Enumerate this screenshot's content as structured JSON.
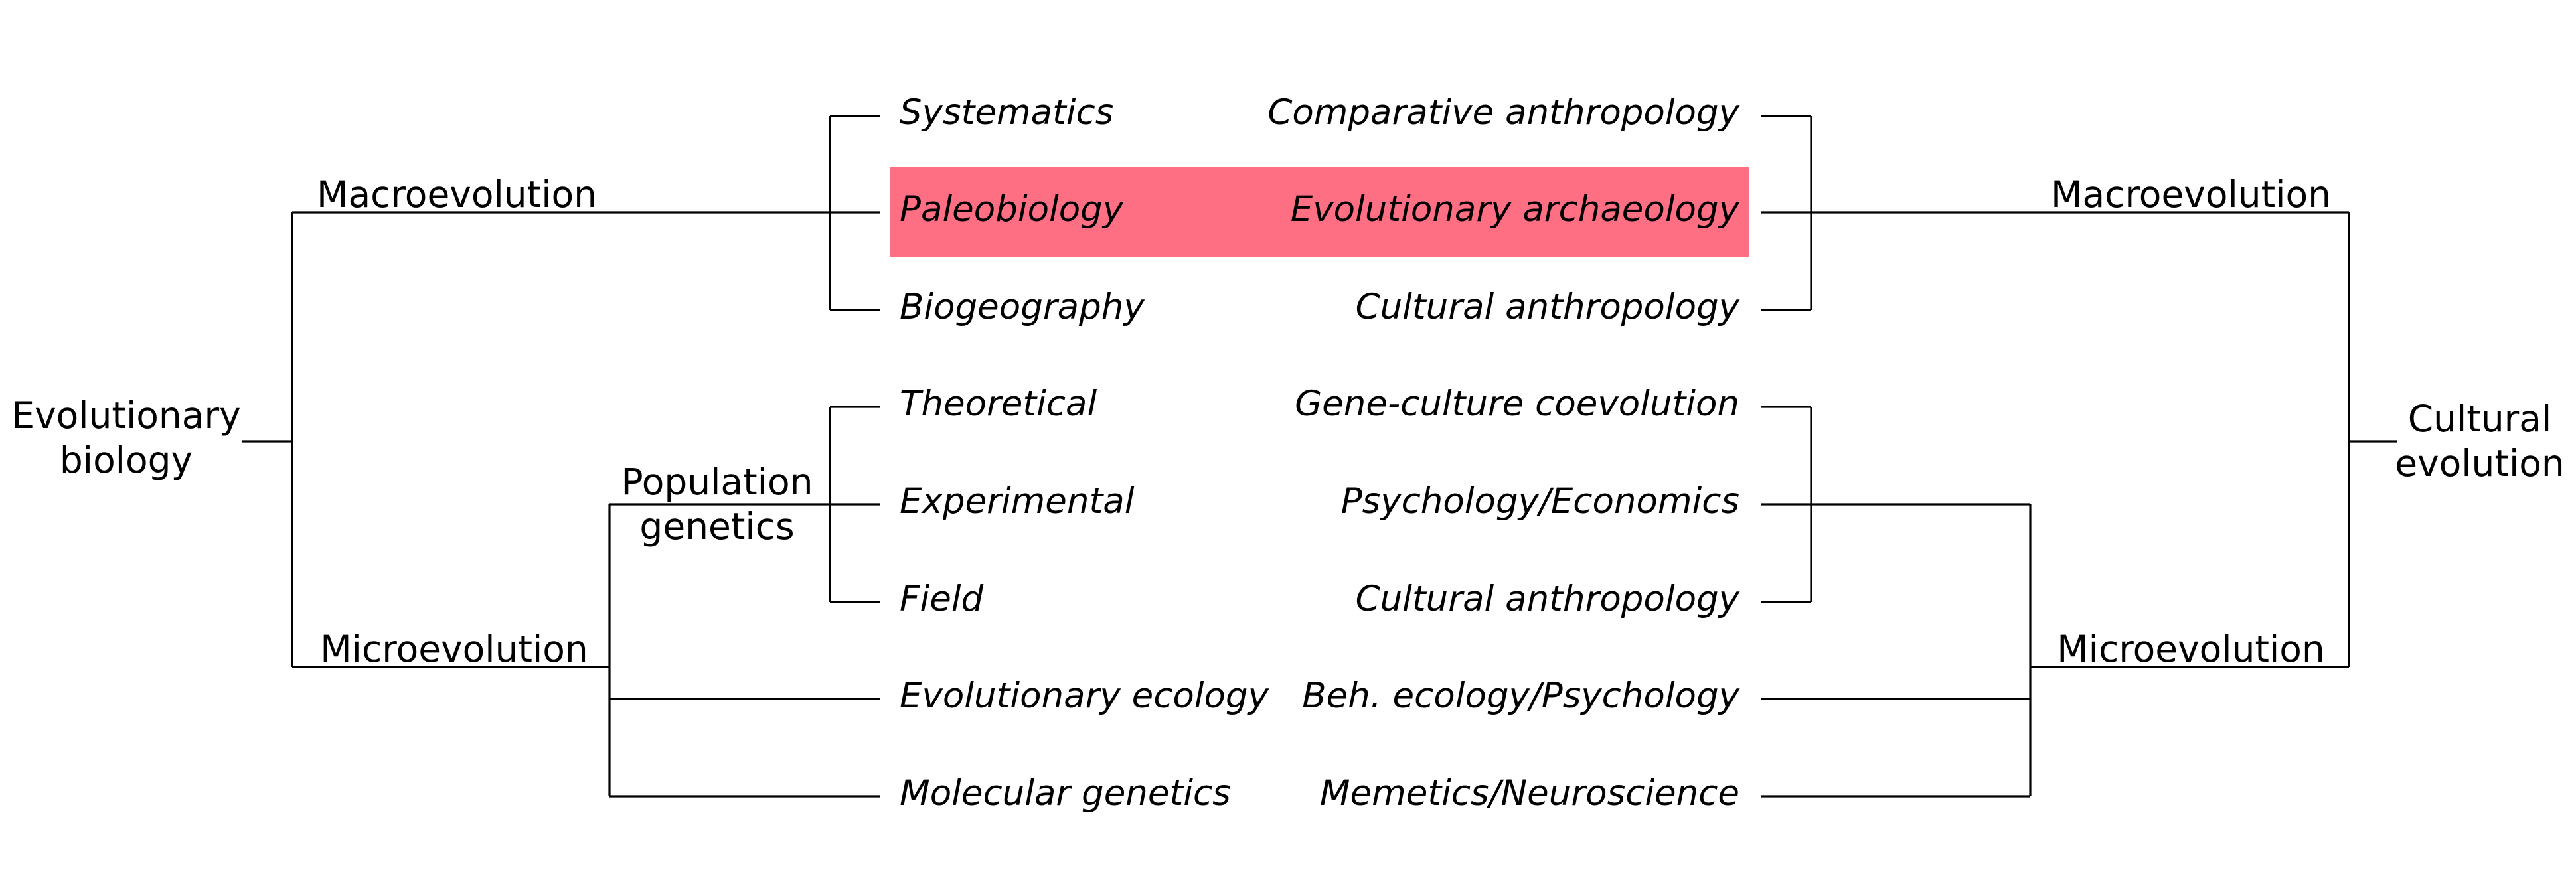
{
  "colors": {
    "highlight": "#ff6f84",
    "line": "#000000",
    "background": "#ffffff"
  },
  "left_tree": {
    "root": [
      "Evolutionary",
      "biology"
    ],
    "macro": "Macroevolution",
    "micro": "Microevolution",
    "popgen": [
      "Population",
      "genetics"
    ],
    "macro_fields": [
      "Systematics",
      "Paleobiology",
      "Biogeography"
    ],
    "popgen_fields": [
      "Theoretical",
      "Experimental",
      "Field"
    ],
    "micro_fields": [
      "Evolutionary ecology",
      "Molecular genetics"
    ]
  },
  "right_tree": {
    "root": [
      "Cultural",
      "evolution"
    ],
    "macro": "Macroevolution",
    "micro": "Microevolution",
    "macro_fields": [
      "Comparative anthropology",
      "Evolutionary archaeology",
      "Cultural anthropology"
    ],
    "gene_culture_fields": [
      "Gene-culture coevolution",
      "Psychology/Economics",
      "Cultural anthropology"
    ],
    "micro_fields": [
      "Beh. ecology/Psychology",
      "Memetics/Neuroscience"
    ]
  },
  "highlight_pair": [
    "Paleobiology",
    "Evolutionary archaeology"
  ]
}
